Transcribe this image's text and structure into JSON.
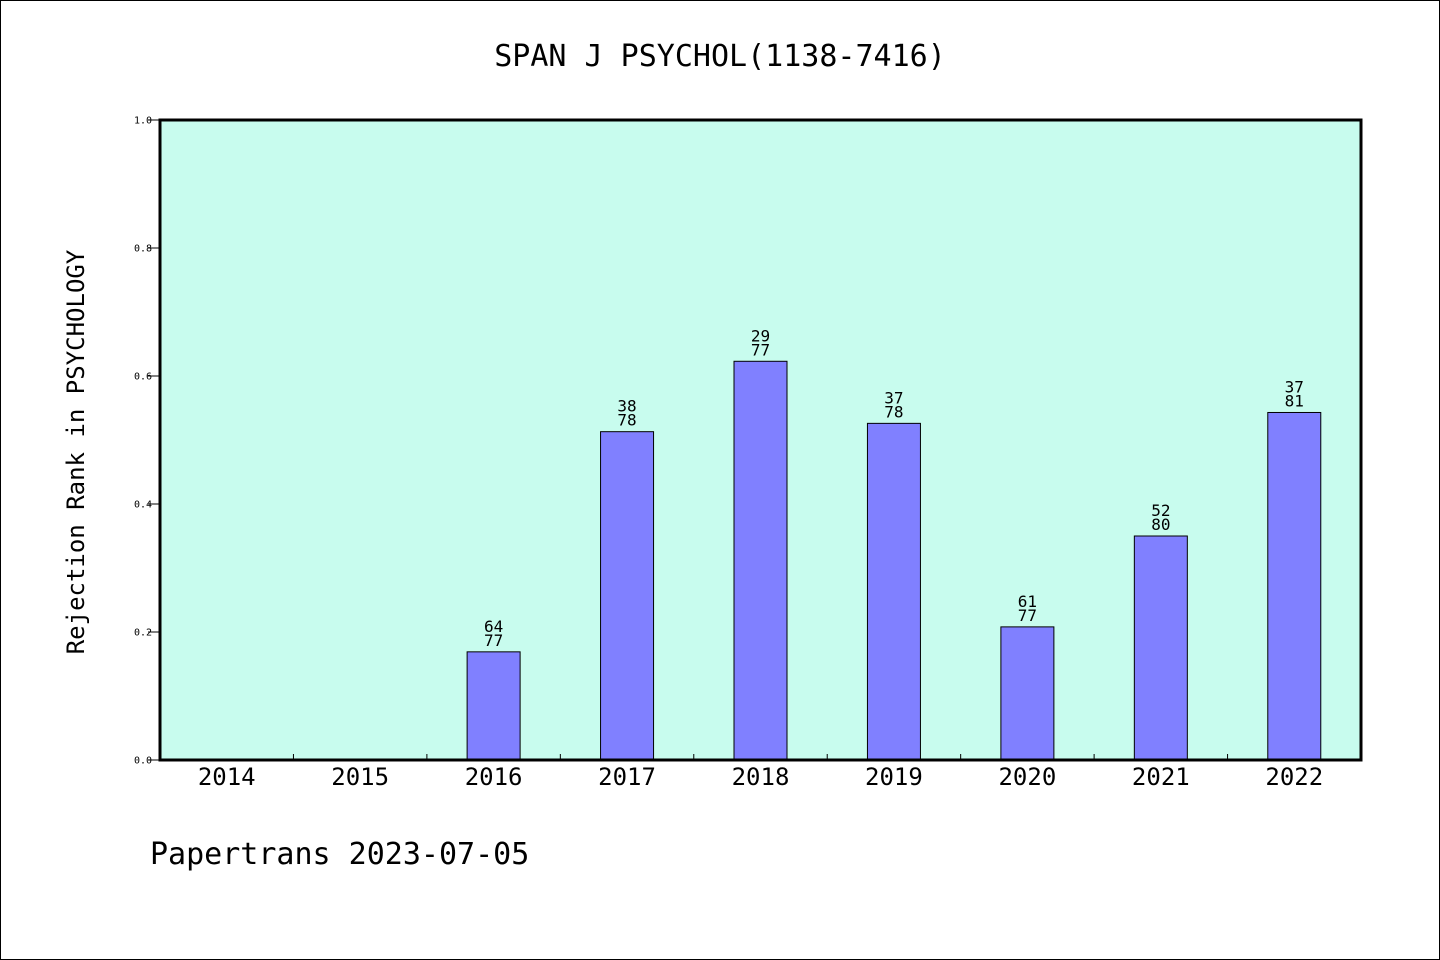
{
  "colors": {
    "plot_background": "#c8fcee",
    "bar_fill": "#8080ff",
    "bar_stroke": "#000000",
    "axis": "#000000",
    "text": "#000000"
  },
  "chart_data": {
    "type": "bar",
    "title": "SPAN J PSYCHOL(1138-7416)",
    "xlabel": "",
    "ylabel": "Rejection Rank in PSYCHOLOGY",
    "ylim": [
      0.0,
      1.0
    ],
    "yticks": [
      "0.0",
      "0.2",
      "0.4",
      "0.6",
      "0.8",
      "1.0"
    ],
    "grid": false,
    "categories": [
      "2014",
      "2015",
      "2016",
      "2017",
      "2018",
      "2019",
      "2020",
      "2021",
      "2022"
    ],
    "values": [
      null,
      null,
      0.169,
      0.513,
      0.623,
      0.526,
      0.208,
      0.35,
      0.543
    ],
    "labels": [
      null,
      null,
      {
        "top": "64",
        "bottom": "77"
      },
      {
        "top": "38",
        "bottom": "78"
      },
      {
        "top": "29",
        "bottom": "77"
      },
      {
        "top": "37",
        "bottom": "78"
      },
      {
        "top": "61",
        "bottom": "77"
      },
      {
        "top": "52",
        "bottom": "80"
      },
      {
        "top": "37",
        "bottom": "81"
      }
    ]
  },
  "footer": "Papertrans 2023-07-05"
}
